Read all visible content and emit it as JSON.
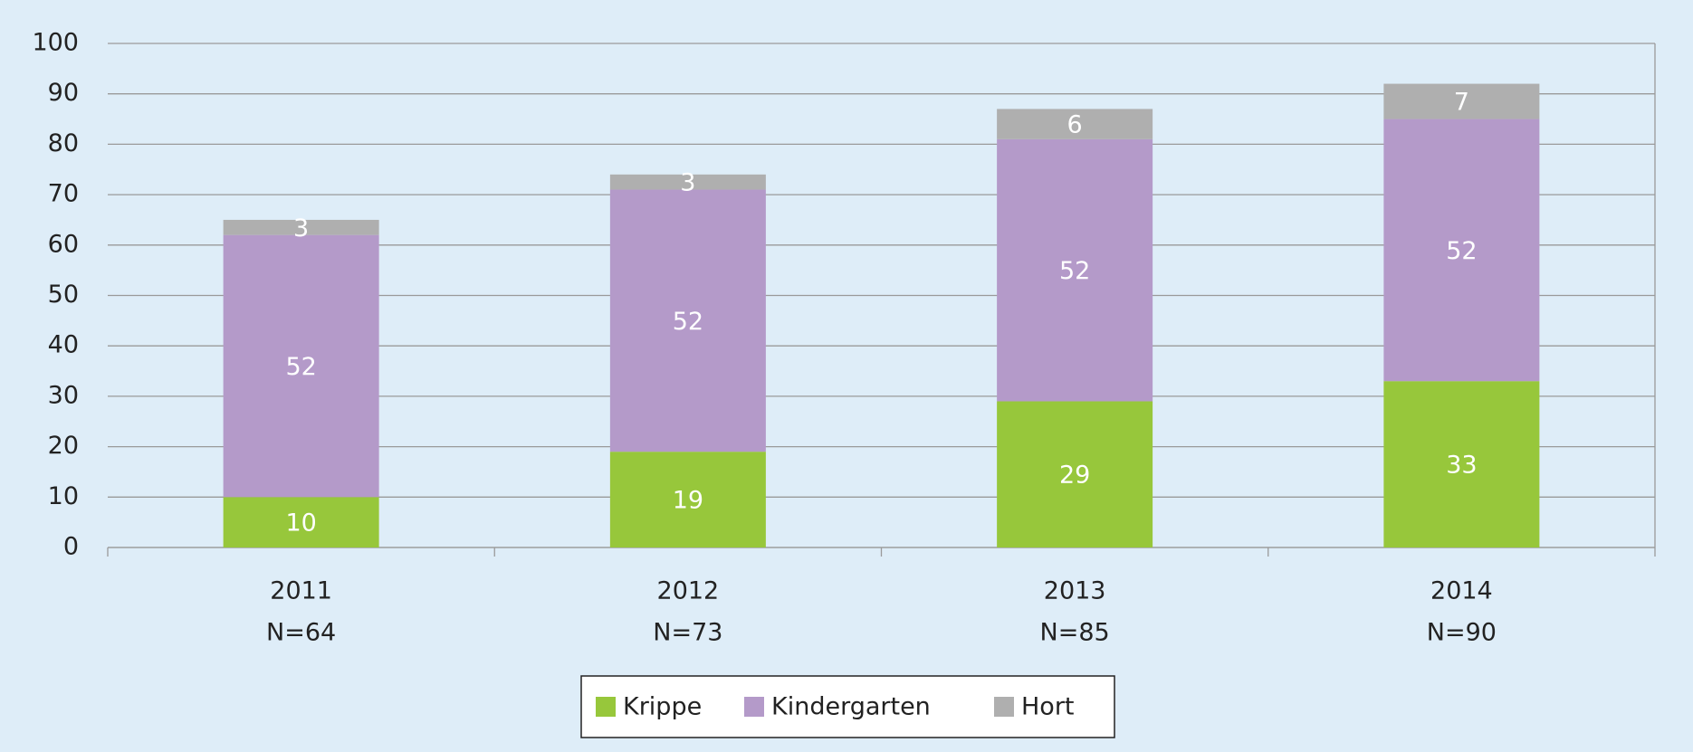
{
  "chart_data": {
    "type": "stacked_bar",
    "categories": [
      "2011",
      "2012",
      "2013",
      "2014"
    ],
    "category_sublabels": [
      "N=64",
      "N=73",
      "N=85",
      "N=90"
    ],
    "series": [
      {
        "name": "Krippe",
        "color": "#97c73b",
        "values": [
          10,
          19,
          29,
          33
        ]
      },
      {
        "name": "Kindergarten",
        "color": "#b49ac9",
        "values": [
          52,
          52,
          52,
          52
        ]
      },
      {
        "name": "Hort",
        "color": "#afafaf",
        "values": [
          3,
          3,
          6,
          7
        ]
      }
    ],
    "ylim": [
      0,
      100
    ],
    "yticks": [
      0,
      10,
      20,
      30,
      40,
      50,
      60,
      70,
      80,
      90,
      100
    ],
    "grid": true,
    "legend": "bottom"
  }
}
